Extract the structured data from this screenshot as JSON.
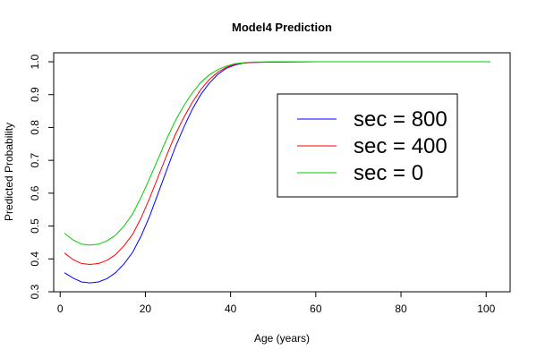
{
  "chart_data": {
    "type": "line",
    "title": "Model4 Prediction",
    "xlabel": "Age (years)",
    "ylabel": "Predicted Probability",
    "xlim": [
      1,
      101
    ],
    "ylim": [
      0.3,
      1.0
    ],
    "x_ticks": [
      "0",
      "20",
      "40",
      "60",
      "80",
      "100"
    ],
    "y_ticks": [
      "0.3",
      "0.4",
      "0.5",
      "0.6",
      "0.7",
      "0.8",
      "0.9",
      "1.0"
    ],
    "grid": false,
    "legend_position": "right",
    "series": [
      {
        "name": "sec = 800",
        "color": "#0000ff",
        "points": [
          [
            1,
            0.358
          ],
          [
            3,
            0.342
          ],
          [
            5,
            0.33
          ],
          [
            7,
            0.327
          ],
          [
            9,
            0.33
          ],
          [
            11,
            0.34
          ],
          [
            13,
            0.358
          ],
          [
            15,
            0.385
          ],
          [
            17,
            0.42
          ],
          [
            19,
            0.47
          ],
          [
            21,
            0.53
          ],
          [
            23,
            0.6
          ],
          [
            25,
            0.67
          ],
          [
            27,
            0.74
          ],
          [
            29,
            0.8
          ],
          [
            31,
            0.855
          ],
          [
            33,
            0.9
          ],
          [
            35,
            0.935
          ],
          [
            37,
            0.962
          ],
          [
            39,
            0.98
          ],
          [
            41,
            0.99
          ],
          [
            43,
            0.996
          ],
          [
            45,
            0.998
          ],
          [
            50,
            0.999
          ],
          [
            60,
            1.0
          ],
          [
            70,
            1.0
          ],
          [
            80,
            1.0
          ],
          [
            90,
            1.0
          ],
          [
            101,
            1.0
          ]
        ]
      },
      {
        "name": "sec = 400",
        "color": "#ff0000",
        "points": [
          [
            1,
            0.418
          ],
          [
            3,
            0.398
          ],
          [
            5,
            0.386
          ],
          [
            7,
            0.383
          ],
          [
            9,
            0.386
          ],
          [
            11,
            0.396
          ],
          [
            13,
            0.413
          ],
          [
            15,
            0.44
          ],
          [
            17,
            0.475
          ],
          [
            19,
            0.525
          ],
          [
            21,
            0.585
          ],
          [
            23,
            0.65
          ],
          [
            25,
            0.715
          ],
          [
            27,
            0.778
          ],
          [
            29,
            0.83
          ],
          [
            31,
            0.876
          ],
          [
            33,
            0.915
          ],
          [
            35,
            0.946
          ],
          [
            37,
            0.968
          ],
          [
            39,
            0.983
          ],
          [
            41,
            0.992
          ],
          [
            43,
            0.996
          ],
          [
            45,
            0.998
          ],
          [
            50,
            0.999
          ],
          [
            60,
            1.0
          ],
          [
            70,
            1.0
          ],
          [
            80,
            1.0
          ],
          [
            90,
            1.0
          ],
          [
            101,
            1.0
          ]
        ]
      },
      {
        "name": "sec = 0",
        "color": "#00cc00",
        "points": [
          [
            1,
            0.478
          ],
          [
            3,
            0.458
          ],
          [
            5,
            0.445
          ],
          [
            7,
            0.442
          ],
          [
            9,
            0.445
          ],
          [
            11,
            0.455
          ],
          [
            13,
            0.472
          ],
          [
            15,
            0.5
          ],
          [
            17,
            0.537
          ],
          [
            19,
            0.588
          ],
          [
            21,
            0.645
          ],
          [
            23,
            0.705
          ],
          [
            25,
            0.765
          ],
          [
            27,
            0.82
          ],
          [
            29,
            0.866
          ],
          [
            31,
            0.905
          ],
          [
            33,
            0.937
          ],
          [
            35,
            0.96
          ],
          [
            37,
            0.976
          ],
          [
            39,
            0.987
          ],
          [
            41,
            0.994
          ],
          [
            43,
            0.997
          ],
          [
            45,
            0.999
          ],
          [
            50,
            1.0
          ],
          [
            60,
            1.0
          ],
          [
            70,
            1.0
          ],
          [
            80,
            1.0
          ],
          [
            90,
            1.0
          ],
          [
            101,
            1.0
          ]
        ]
      }
    ]
  }
}
